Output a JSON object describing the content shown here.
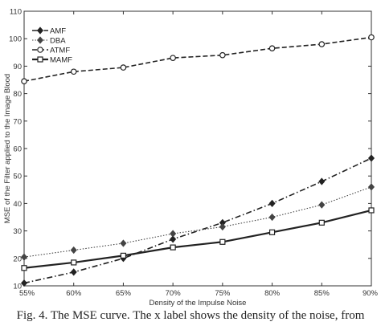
{
  "caption": "Fig. 4. The MSE curve. The x label shows the density of the noise, from",
  "chart_data": {
    "type": "line",
    "xlabel": "Density of the Impulse Noise",
    "ylabel": "MSE of the Filter applied to the Image Blood",
    "categories": [
      "55%",
      "60%",
      "65%",
      "70%",
      "75%",
      "80%",
      "85%",
      "90%"
    ],
    "ylim": [
      10,
      110
    ],
    "yticks": [
      10,
      20,
      30,
      40,
      50,
      60,
      70,
      80,
      90,
      100,
      110
    ],
    "grid": false,
    "legend_position": "top-left",
    "series": [
      {
        "name": "AMF",
        "values": [
          11,
          15,
          20,
          27,
          33,
          40,
          48,
          56.5
        ],
        "color": "#222222",
        "dash": "dash-dot",
        "marker": "diamond-filled"
      },
      {
        "name": "DBA",
        "values": [
          20.5,
          23,
          25.5,
          29,
          31.5,
          35,
          39.5,
          46
        ],
        "color": "#444444",
        "dash": "dotted",
        "marker": "diamond-filled"
      },
      {
        "name": "ATMF",
        "values": [
          84.5,
          88,
          89.5,
          93,
          94,
          96.5,
          98,
          100.5
        ],
        "color": "#222222",
        "dash": "dashed",
        "marker": "circle-open"
      },
      {
        "name": "MAMF",
        "values": [
          16.5,
          18.5,
          21,
          24,
          26,
          29.5,
          33,
          37.5
        ],
        "color": "#222222",
        "dash": "solid",
        "marker": "square-open"
      }
    ]
  }
}
